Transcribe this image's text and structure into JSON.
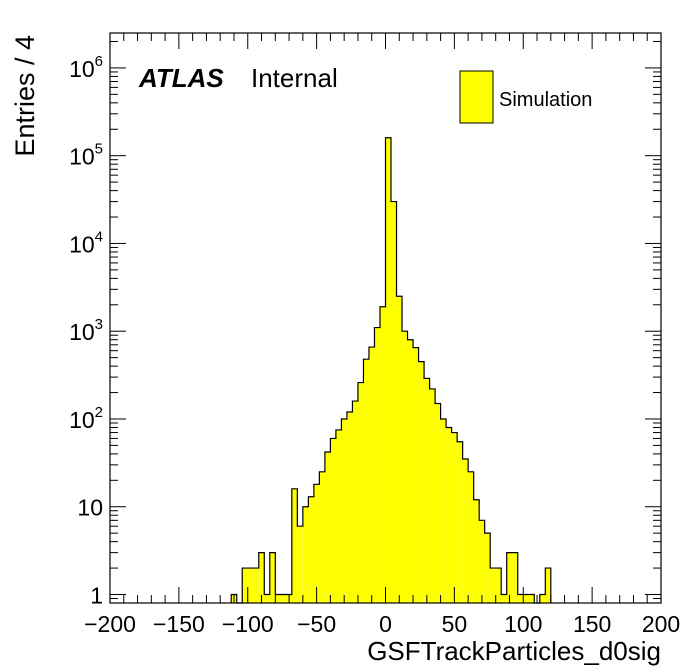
{
  "chart_data": {
    "type": "bar",
    "style": "step-histogram",
    "ylabel": "Entries / 4",
    "xlabel": "GSFTrackParticles_d0sig",
    "atlas_label": "ATLAS",
    "atlas_sublabel": "Internal",
    "legend": {
      "position": "top-right",
      "entries": [
        {
          "name": "Simulation",
          "color": "#ffff00"
        }
      ]
    },
    "fill_color": "#ffff00",
    "line_color": "#000000",
    "xlim": [
      -200,
      200
    ],
    "ylim": [
      0.8,
      2500000
    ],
    "yscale": "log",
    "grid": false,
    "xticks": [
      -200,
      -150,
      -100,
      -50,
      0,
      50,
      100,
      150,
      200
    ],
    "xtick_labels": [
      "−200",
      "−150",
      "−100",
      "−50",
      "0",
      "50",
      "100",
      "150",
      "200"
    ],
    "yticks": [
      {
        "value": 1,
        "base": "1",
        "exp": ""
      },
      {
        "value": 10,
        "base": "10",
        "exp": ""
      },
      {
        "value": 100,
        "base": "10",
        "exp": "2"
      },
      {
        "value": 1000,
        "base": "10",
        "exp": "3"
      },
      {
        "value": 10000,
        "base": "10",
        "exp": "4"
      },
      {
        "value": 100000,
        "base": "10",
        "exp": "5"
      },
      {
        "value": 1000000,
        "base": "10",
        "exp": "6"
      }
    ],
    "bin_width": 4,
    "bin_starts": [
      -112,
      -108,
      -104,
      -100,
      -96,
      -92,
      -88,
      -84,
      -80,
      -76,
      -72,
      -68,
      -64,
      -60,
      -56,
      -52,
      -48,
      -44,
      -40,
      -36,
      -32,
      -28,
      -24,
      -20,
      -16,
      -12,
      -8,
      -4,
      0,
      4,
      8,
      12,
      16,
      20,
      24,
      28,
      32,
      36,
      40,
      44,
      48,
      52,
      56,
      60,
      64,
      68,
      72,
      76,
      80,
      84,
      88,
      92,
      96,
      100,
      104,
      108,
      112,
      116
    ],
    "values": [
      1,
      0,
      2,
      2,
      2,
      3,
      1,
      3,
      1,
      1,
      1,
      16,
      6,
      10,
      13,
      18,
      25,
      42,
      60,
      75,
      100,
      120,
      160,
      260,
      480,
      660,
      1100,
      1900,
      160000,
      30000,
      2500,
      1000,
      800,
      650,
      450,
      290,
      220,
      150,
      100,
      80,
      70,
      55,
      35,
      25,
      12,
      7,
      5,
      2,
      2,
      1,
      3,
      3,
      1,
      1,
      1,
      0,
      1,
      2
    ]
  }
}
